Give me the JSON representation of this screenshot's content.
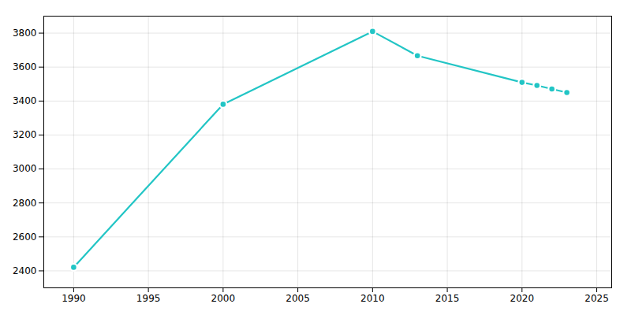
{
  "chart_data": {
    "type": "line",
    "x": [
      1990,
      2000,
      2010,
      2013,
      2020,
      2021,
      2022,
      2023
    ],
    "values": [
      2421,
      3381,
      3810,
      3667,
      3510,
      3492,
      3471,
      3450
    ],
    "color": "#22c5c5",
    "marker": "circle",
    "xlim": [
      1988,
      2026
    ],
    "ylim": [
      2300,
      3900
    ],
    "xticks": [
      1990,
      1995,
      2000,
      2005,
      2010,
      2015,
      2020,
      2025
    ],
    "yticks": [
      2400,
      2600,
      2800,
      3000,
      3200,
      3400,
      3600,
      3800
    ],
    "grid": true
  }
}
